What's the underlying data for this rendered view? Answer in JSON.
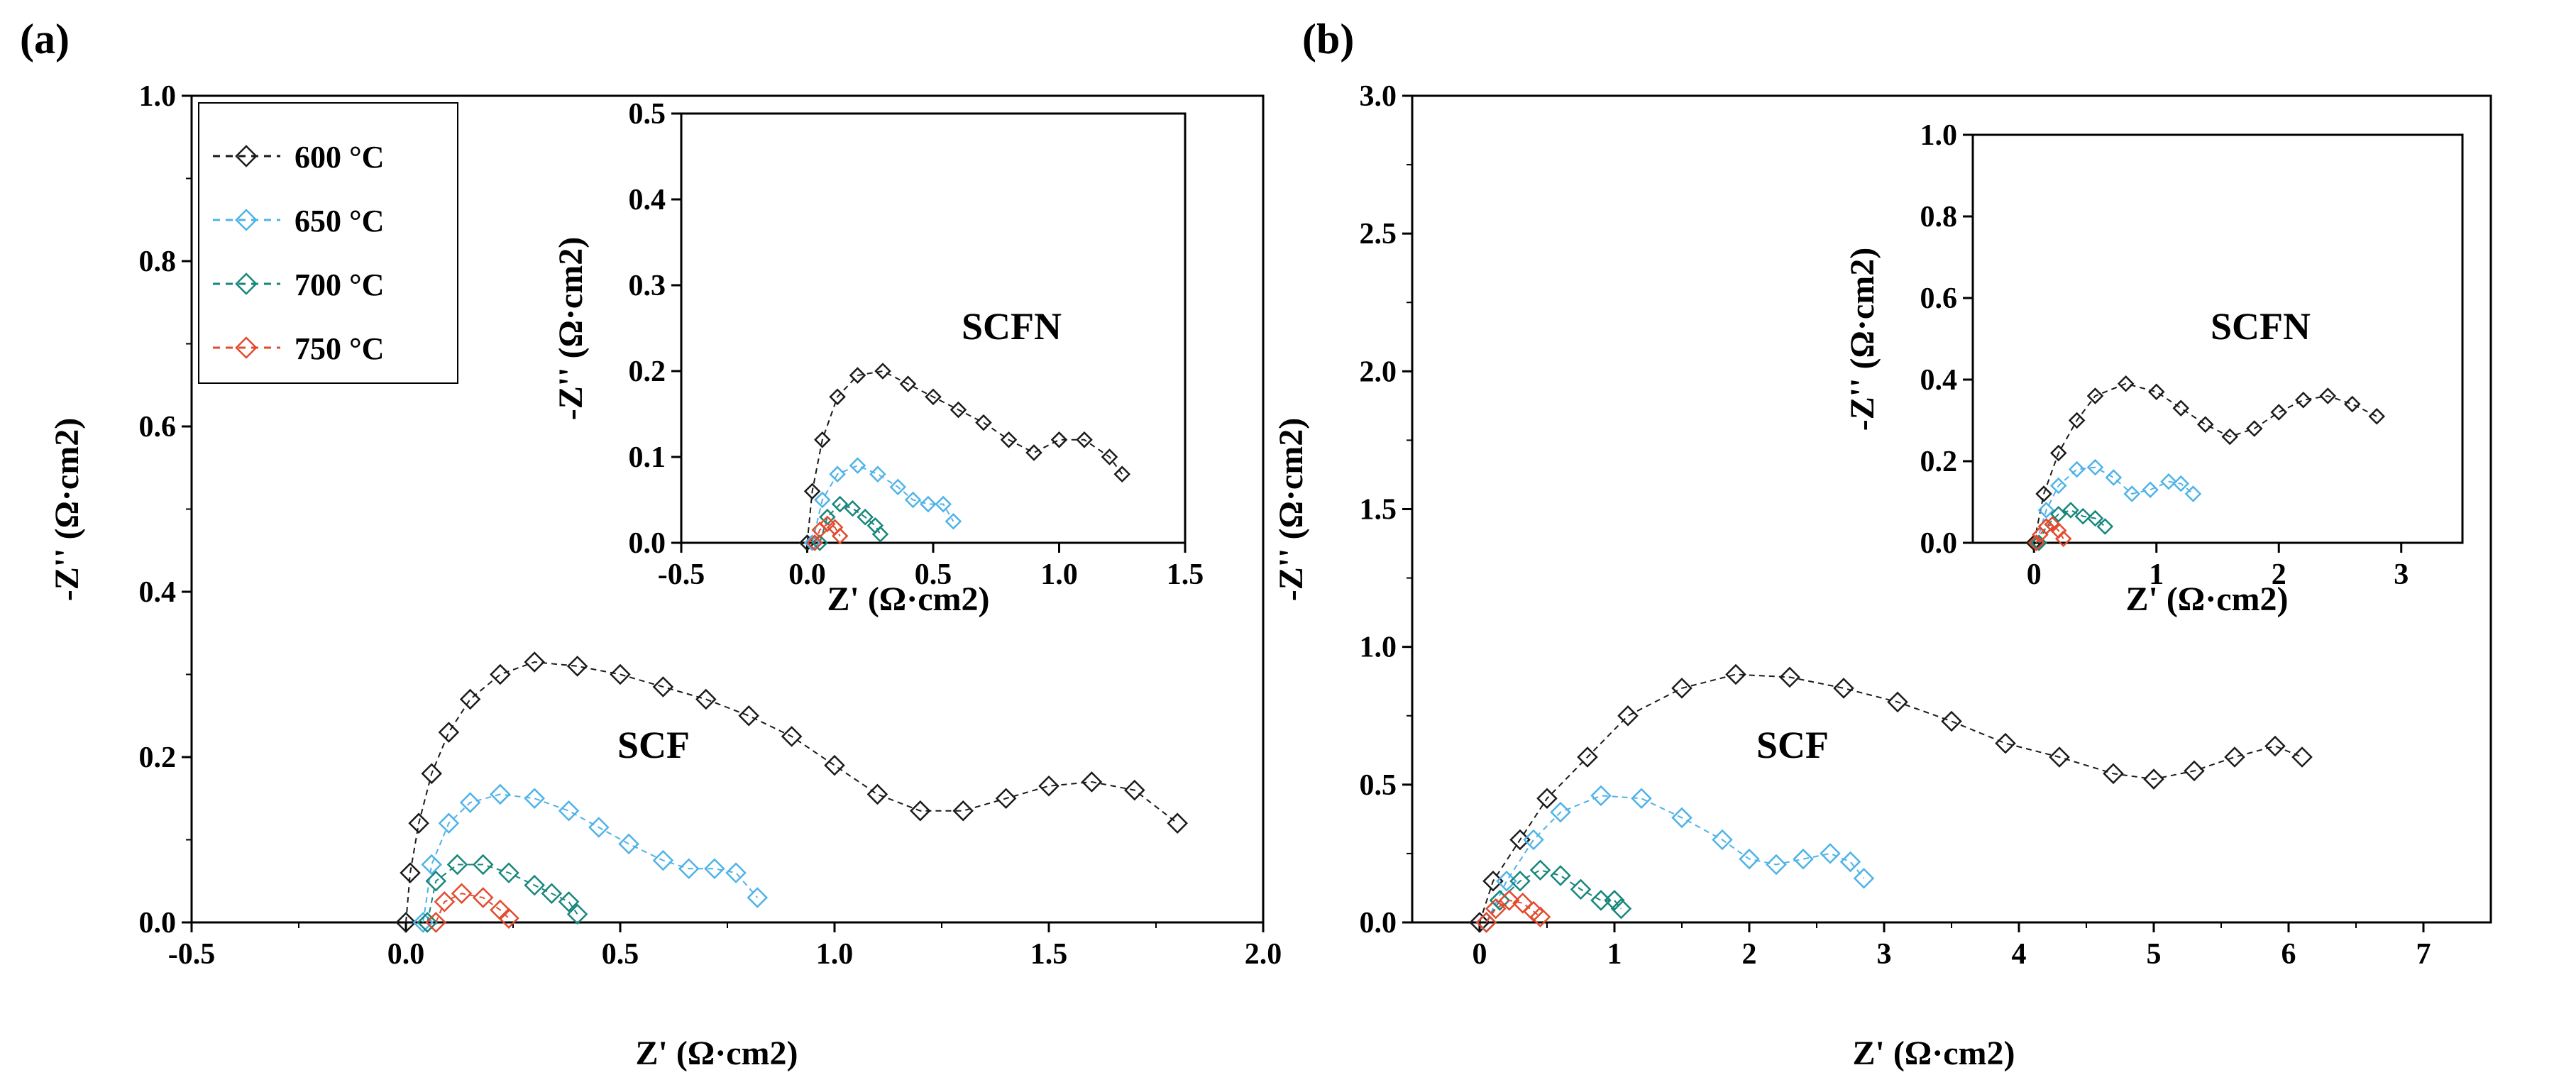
{
  "colors": {
    "600 oC": "#1a1a1a",
    "650 oC": "#4fb3e8",
    "700 oC": "#17867b",
    "750 oC": "#e34a2e"
  },
  "chart_data": [
    {
      "id": "a-main",
      "panel_label": "(a)",
      "type": "scatter",
      "xlabel": "Z' (Ω·cm2)",
      "ylabel": "-Z'' (Ω·cm2)",
      "xlim": [
        -0.5,
        2.0
      ],
      "ylim": [
        0.0,
        1.0
      ],
      "xticks": [
        "-0.5",
        "0.0",
        "0.5",
        "1.0",
        "1.5",
        "2.0"
      ],
      "yticks": [
        "0.0",
        "0.2",
        "0.4",
        "0.6",
        "0.8",
        "1.0"
      ],
      "annotation": "SCF",
      "legend": {
        "position": "top-left",
        "entries": [
          "600 °C",
          "650 °C",
          "700 °C",
          "750 °C"
        ]
      },
      "series": [
        {
          "name": "600 oC",
          "points": [
            [
              0.0,
              0.0
            ],
            [
              0.01,
              0.06
            ],
            [
              0.03,
              0.12
            ],
            [
              0.06,
              0.18
            ],
            [
              0.1,
              0.23
            ],
            [
              0.15,
              0.27
            ],
            [
              0.22,
              0.3
            ],
            [
              0.3,
              0.315
            ],
            [
              0.4,
              0.31
            ],
            [
              0.5,
              0.3
            ],
            [
              0.6,
              0.285
            ],
            [
              0.7,
              0.27
            ],
            [
              0.8,
              0.25
            ],
            [
              0.9,
              0.225
            ],
            [
              1.0,
              0.19
            ],
            [
              1.1,
              0.155
            ],
            [
              1.2,
              0.135
            ],
            [
              1.3,
              0.135
            ],
            [
              1.4,
              0.15
            ],
            [
              1.5,
              0.165
            ],
            [
              1.6,
              0.17
            ],
            [
              1.7,
              0.16
            ],
            [
              1.8,
              0.12
            ]
          ]
        },
        {
          "name": "650 oC",
          "points": [
            [
              0.04,
              0.0
            ],
            [
              0.06,
              0.07
            ],
            [
              0.1,
              0.12
            ],
            [
              0.15,
              0.145
            ],
            [
              0.22,
              0.155
            ],
            [
              0.3,
              0.15
            ],
            [
              0.38,
              0.135
            ],
            [
              0.45,
              0.115
            ],
            [
              0.52,
              0.095
            ],
            [
              0.6,
              0.075
            ],
            [
              0.66,
              0.065
            ],
            [
              0.72,
              0.065
            ],
            [
              0.77,
              0.06
            ],
            [
              0.82,
              0.03
            ]
          ]
        },
        {
          "name": "700 oC",
          "points": [
            [
              0.05,
              0.0
            ],
            [
              0.07,
              0.05
            ],
            [
              0.12,
              0.07
            ],
            [
              0.18,
              0.07
            ],
            [
              0.24,
              0.06
            ],
            [
              0.3,
              0.045
            ],
            [
              0.34,
              0.035
            ],
            [
              0.38,
              0.025
            ],
            [
              0.4,
              0.01
            ]
          ]
        },
        {
          "name": "750 oC",
          "points": [
            [
              0.07,
              0.0
            ],
            [
              0.09,
              0.025
            ],
            [
              0.13,
              0.035
            ],
            [
              0.18,
              0.03
            ],
            [
              0.22,
              0.015
            ],
            [
              0.24,
              0.005
            ]
          ]
        }
      ]
    },
    {
      "id": "a-inset",
      "type": "scatter",
      "xlabel": "Z' (Ω·cm2)",
      "ylabel": "-Z'' (Ω·cm2)",
      "xlim": [
        -0.5,
        1.5
      ],
      "ylim": [
        0.0,
        0.5
      ],
      "xticks": [
        "-0.5",
        "0.0",
        "0.5",
        "1.0",
        "1.5"
      ],
      "yticks": [
        "0.0",
        "0.1",
        "0.2",
        "0.3",
        "0.4",
        "0.5"
      ],
      "annotation": "SCFN",
      "series": [
        {
          "name": "600 oC",
          "points": [
            [
              0.0,
              0.0
            ],
            [
              0.02,
              0.06
            ],
            [
              0.06,
              0.12
            ],
            [
              0.12,
              0.17
            ],
            [
              0.2,
              0.195
            ],
            [
              0.3,
              0.2
            ],
            [
              0.4,
              0.185
            ],
            [
              0.5,
              0.17
            ],
            [
              0.6,
              0.155
            ],
            [
              0.7,
              0.14
            ],
            [
              0.8,
              0.12
            ],
            [
              0.9,
              0.105
            ],
            [
              1.0,
              0.12
            ],
            [
              1.1,
              0.12
            ],
            [
              1.2,
              0.1
            ],
            [
              1.25,
              0.08
            ]
          ]
        },
        {
          "name": "650 oC",
          "points": [
            [
              0.02,
              0.0
            ],
            [
              0.06,
              0.05
            ],
            [
              0.12,
              0.08
            ],
            [
              0.2,
              0.09
            ],
            [
              0.28,
              0.08
            ],
            [
              0.36,
              0.065
            ],
            [
              0.42,
              0.05
            ],
            [
              0.48,
              0.045
            ],
            [
              0.54,
              0.045
            ],
            [
              0.58,
              0.025
            ]
          ]
        },
        {
          "name": "700 oC",
          "points": [
            [
              0.05,
              0.0
            ],
            [
              0.08,
              0.03
            ],
            [
              0.13,
              0.045
            ],
            [
              0.18,
              0.04
            ],
            [
              0.23,
              0.03
            ],
            [
              0.27,
              0.02
            ],
            [
              0.29,
              0.01
            ]
          ]
        },
        {
          "name": "750 oC",
          "points": [
            [
              0.03,
              0.0
            ],
            [
              0.05,
              0.015
            ],
            [
              0.08,
              0.022
            ],
            [
              0.11,
              0.018
            ],
            [
              0.13,
              0.008
            ]
          ]
        }
      ]
    },
    {
      "id": "b-main",
      "panel_label": "(b)",
      "type": "scatter",
      "xlabel": "Z' (Ω·cm2)",
      "ylabel": "-Z'' (Ω·cm2)",
      "xlim": [
        -0.5,
        7.5
      ],
      "ylim": [
        0.0,
        3.0
      ],
      "xticks": [
        "0",
        "1",
        "2",
        "3",
        "4",
        "5",
        "6",
        "7"
      ],
      "xtick_values": [
        0,
        1,
        2,
        3,
        4,
        5,
        6,
        7
      ],
      "yticks": [
        "0.0",
        "0.5",
        "1.0",
        "1.5",
        "2.0",
        "2.5",
        "3.0"
      ],
      "annotation": "SCF",
      "series": [
        {
          "name": "600 oC",
          "points": [
            [
              0.0,
              0.0
            ],
            [
              0.1,
              0.15
            ],
            [
              0.3,
              0.3
            ],
            [
              0.5,
              0.45
            ],
            [
              0.8,
              0.6
            ],
            [
              1.1,
              0.75
            ],
            [
              1.5,
              0.85
            ],
            [
              1.9,
              0.9
            ],
            [
              2.3,
              0.89
            ],
            [
              2.7,
              0.85
            ],
            [
              3.1,
              0.8
            ],
            [
              3.5,
              0.73
            ],
            [
              3.9,
              0.65
            ],
            [
              4.3,
              0.6
            ],
            [
              4.7,
              0.54
            ],
            [
              5.0,
              0.52
            ],
            [
              5.3,
              0.55
            ],
            [
              5.6,
              0.6
            ],
            [
              5.9,
              0.64
            ],
            [
              6.1,
              0.6
            ]
          ]
        },
        {
          "name": "650 oC",
          "points": [
            [
              0.05,
              0.0
            ],
            [
              0.2,
              0.15
            ],
            [
              0.4,
              0.3
            ],
            [
              0.6,
              0.4
            ],
            [
              0.9,
              0.46
            ],
            [
              1.2,
              0.45
            ],
            [
              1.5,
              0.38
            ],
            [
              1.8,
              0.3
            ],
            [
              2.0,
              0.23
            ],
            [
              2.2,
              0.21
            ],
            [
              2.4,
              0.23
            ],
            [
              2.6,
              0.25
            ],
            [
              2.75,
              0.22
            ],
            [
              2.85,
              0.16
            ]
          ]
        },
        {
          "name": "700 oC",
          "points": [
            [
              0.05,
              0.0
            ],
            [
              0.15,
              0.08
            ],
            [
              0.3,
              0.15
            ],
            [
              0.45,
              0.19
            ],
            [
              0.6,
              0.17
            ],
            [
              0.75,
              0.12
            ],
            [
              0.9,
              0.08
            ],
            [
              1.0,
              0.08
            ],
            [
              1.05,
              0.05
            ]
          ]
        },
        {
          "name": "750 oC",
          "points": [
            [
              0.05,
              0.0
            ],
            [
              0.12,
              0.05
            ],
            [
              0.22,
              0.08
            ],
            [
              0.32,
              0.07
            ],
            [
              0.4,
              0.04
            ],
            [
              0.45,
              0.02
            ]
          ]
        }
      ]
    },
    {
      "id": "b-inset",
      "type": "scatter",
      "xlabel": "Z' (Ω·cm2)",
      "ylabel": "-Z'' (Ω·cm2)",
      "xlim": [
        -0.5,
        3.5
      ],
      "ylim": [
        0.0,
        1.0
      ],
      "xticks": [
        "0",
        "1",
        "2",
        "3"
      ],
      "xtick_values": [
        0,
        1,
        2,
        3
      ],
      "yticks": [
        "0.0",
        "0.2",
        "0.4",
        "0.6",
        "0.8",
        "1.0"
      ],
      "annotation": "SCFN",
      "series": [
        {
          "name": "600 oC",
          "points": [
            [
              0.0,
              0.0
            ],
            [
              0.08,
              0.12
            ],
            [
              0.2,
              0.22
            ],
            [
              0.35,
              0.3
            ],
            [
              0.5,
              0.36
            ],
            [
              0.75,
              0.39
            ],
            [
              1.0,
              0.37
            ],
            [
              1.2,
              0.33
            ],
            [
              1.4,
              0.29
            ],
            [
              1.6,
              0.26
            ],
            [
              1.8,
              0.28
            ],
            [
              2.0,
              0.32
            ],
            [
              2.2,
              0.35
            ],
            [
              2.4,
              0.36
            ],
            [
              2.6,
              0.34
            ],
            [
              2.8,
              0.31
            ]
          ]
        },
        {
          "name": "650 oC",
          "points": [
            [
              0.02,
              0.0
            ],
            [
              0.1,
              0.08
            ],
            [
              0.2,
              0.14
            ],
            [
              0.35,
              0.18
            ],
            [
              0.5,
              0.185
            ],
            [
              0.65,
              0.16
            ],
            [
              0.8,
              0.12
            ],
            [
              0.95,
              0.13
            ],
            [
              1.1,
              0.15
            ],
            [
              1.2,
              0.145
            ],
            [
              1.3,
              0.12
            ]
          ]
        },
        {
          "name": "700 oC",
          "points": [
            [
              0.04,
              0.0
            ],
            [
              0.1,
              0.04
            ],
            [
              0.2,
              0.07
            ],
            [
              0.3,
              0.08
            ],
            [
              0.4,
              0.065
            ],
            [
              0.5,
              0.06
            ],
            [
              0.58,
              0.04
            ]
          ]
        },
        {
          "name": "750 oC",
          "points": [
            [
              0.02,
              0.0
            ],
            [
              0.05,
              0.02
            ],
            [
              0.1,
              0.04
            ],
            [
              0.15,
              0.045
            ],
            [
              0.2,
              0.03
            ],
            [
              0.24,
              0.01
            ]
          ]
        }
      ]
    }
  ]
}
